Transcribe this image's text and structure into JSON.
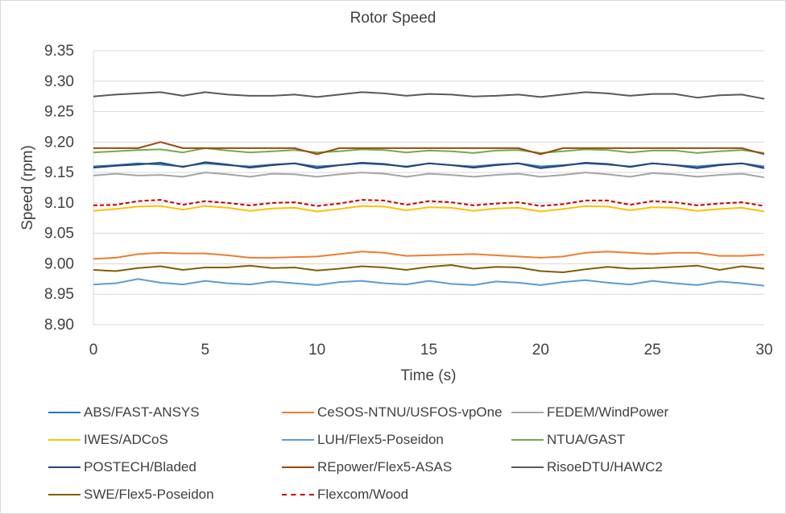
{
  "chart_data": {
    "type": "line",
    "title": "Rotor Speed",
    "xlabel": "Time (s)",
    "ylabel": "Speed (rpm)",
    "xlim": [
      0,
      30
    ],
    "ylim": [
      8.9,
      9.35
    ],
    "x_ticks": [
      "0",
      "5",
      "10",
      "15",
      "20",
      "25",
      "30"
    ],
    "y_ticks": [
      "8.90",
      "8.95",
      "9.00",
      "9.05",
      "9.10",
      "9.15",
      "9.20",
      "9.25",
      "9.30",
      "9.35"
    ],
    "grid": "horizontal",
    "legend_position": "bottom",
    "x": [
      0,
      1,
      2,
      3,
      4,
      5,
      6,
      7,
      8,
      9,
      10,
      11,
      12,
      13,
      14,
      15,
      16,
      17,
      18,
      19,
      20,
      21,
      22,
      23,
      24,
      25,
      26,
      27,
      28,
      29,
      30
    ],
    "series": [
      {
        "name": "ABS/FAST-ANSYS",
        "color": "#2e75b6",
        "dash": "solid",
        "values": [
          9.16,
          9.162,
          9.165,
          9.163,
          9.16,
          9.165,
          9.162,
          9.16,
          9.163,
          9.165,
          9.16,
          9.162,
          9.165,
          9.163,
          9.16,
          9.165,
          9.162,
          9.16,
          9.163,
          9.165,
          9.16,
          9.162,
          9.165,
          9.163,
          9.16,
          9.165,
          9.162,
          9.16,
          9.163,
          9.165,
          9.16
        ]
      },
      {
        "name": "CeSOS-NTNU/USFOS-vpOne",
        "color": "#ed7d31",
        "dash": "solid",
        "values": [
          9.008,
          9.01,
          9.016,
          9.018,
          9.017,
          9.017,
          9.014,
          9.01,
          9.01,
          9.011,
          9.012,
          9.016,
          9.02,
          9.018,
          9.013,
          9.014,
          9.015,
          9.016,
          9.014,
          9.012,
          9.01,
          9.012,
          9.018,
          9.02,
          9.018,
          9.016,
          9.018,
          9.018,
          9.013,
          9.013,
          9.015
        ]
      },
      {
        "name": "FEDEM/WindPower",
        "color": "#a5a5a5",
        "dash": "solid",
        "values": [
          9.145,
          9.148,
          9.145,
          9.146,
          9.143,
          9.15,
          9.147,
          9.143,
          9.148,
          9.147,
          9.143,
          9.147,
          9.15,
          9.148,
          9.143,
          9.148,
          9.146,
          9.143,
          9.146,
          9.148,
          9.143,
          9.146,
          9.15,
          9.147,
          9.143,
          9.149,
          9.147,
          9.143,
          9.146,
          9.148,
          9.142
        ]
      },
      {
        "name": "IWES/ADCoS",
        "color": "#ffc000",
        "dash": "solid",
        "values": [
          9.087,
          9.09,
          9.094,
          9.095,
          9.089,
          9.095,
          9.092,
          9.087,
          9.091,
          9.092,
          9.086,
          9.09,
          9.095,
          9.094,
          9.088,
          9.093,
          9.092,
          9.087,
          9.091,
          9.092,
          9.086,
          9.09,
          9.095,
          9.094,
          9.088,
          9.093,
          9.092,
          9.087,
          9.09,
          9.092,
          9.086
        ]
      },
      {
        "name": "LUH/Flex5-Poseidon",
        "color": "#5b9bd5",
        "dash": "solid",
        "values": [
          8.966,
          8.968,
          8.975,
          8.969,
          8.966,
          8.972,
          8.968,
          8.966,
          8.971,
          8.968,
          8.965,
          8.97,
          8.972,
          8.968,
          8.966,
          8.972,
          8.967,
          8.965,
          8.971,
          8.969,
          8.965,
          8.97,
          8.973,
          8.969,
          8.966,
          8.972,
          8.968,
          8.965,
          8.971,
          8.968,
          8.964
        ]
      },
      {
        "name": "NTUA/GAST",
        "color": "#70ad47",
        "dash": "solid",
        "values": [
          9.183,
          9.185,
          9.187,
          9.188,
          9.183,
          9.19,
          9.186,
          9.183,
          9.185,
          9.187,
          9.183,
          9.185,
          9.188,
          9.187,
          9.183,
          9.186,
          9.185,
          9.182,
          9.186,
          9.187,
          9.182,
          9.185,
          9.188,
          9.187,
          9.183,
          9.186,
          9.186,
          9.182,
          9.185,
          9.187,
          9.182
        ]
      },
      {
        "name": "POSTECH/Bladed",
        "color": "#264478",
        "dash": "solid",
        "values": [
          9.158,
          9.161,
          9.163,
          9.166,
          9.159,
          9.167,
          9.163,
          9.158,
          9.162,
          9.165,
          9.157,
          9.162,
          9.166,
          9.164,
          9.159,
          9.165,
          9.162,
          9.158,
          9.162,
          9.165,
          9.157,
          9.161,
          9.166,
          9.164,
          9.159,
          9.165,
          9.162,
          9.157,
          9.162,
          9.165,
          9.157
        ]
      },
      {
        "name": "REpower/Flex5-ASAS",
        "color": "#9e480e",
        "dash": "solid",
        "values": [
          9.19,
          9.19,
          9.19,
          9.2,
          9.19,
          9.19,
          9.19,
          9.19,
          9.19,
          9.19,
          9.18,
          9.19,
          9.19,
          9.19,
          9.19,
          9.19,
          9.19,
          9.19,
          9.19,
          9.19,
          9.18,
          9.19,
          9.19,
          9.19,
          9.19,
          9.19,
          9.19,
          9.19,
          9.19,
          9.19,
          9.18
        ]
      },
      {
        "name": "RisoeDTU/HAWC2",
        "color": "#595959",
        "dash": "solid",
        "values": [
          9.275,
          9.278,
          9.28,
          9.282,
          9.276,
          9.282,
          9.278,
          9.276,
          9.276,
          9.278,
          9.274,
          9.278,
          9.282,
          9.28,
          9.276,
          9.279,
          9.278,
          9.275,
          9.276,
          9.278,
          9.274,
          9.278,
          9.282,
          9.28,
          9.276,
          9.279,
          9.279,
          9.273,
          9.277,
          9.278,
          9.271
        ]
      },
      {
        "name": "SWE/Flex5-Poseidon",
        "color": "#7f6000",
        "dash": "solid",
        "values": [
          8.99,
          8.988,
          8.993,
          8.996,
          8.99,
          8.994,
          8.994,
          8.997,
          8.993,
          8.994,
          8.989,
          8.992,
          8.996,
          8.994,
          8.99,
          8.995,
          8.998,
          8.992,
          8.995,
          8.994,
          8.988,
          8.986,
          8.991,
          8.995,
          8.992,
          8.993,
          8.995,
          8.997,
          8.99,
          8.996,
          8.992
        ]
      },
      {
        "name": "Flexcom/Wood",
        "color": "#c00000",
        "dash": "dashed",
        "values": [
          9.096,
          9.097,
          9.103,
          9.105,
          9.097,
          9.103,
          9.1,
          9.096,
          9.1,
          9.101,
          9.095,
          9.099,
          9.105,
          9.104,
          9.097,
          9.103,
          9.101,
          9.096,
          9.099,
          9.101,
          9.095,
          9.098,
          9.104,
          9.104,
          9.097,
          9.103,
          9.101,
          9.096,
          9.099,
          9.101,
          9.095
        ]
      }
    ]
  }
}
